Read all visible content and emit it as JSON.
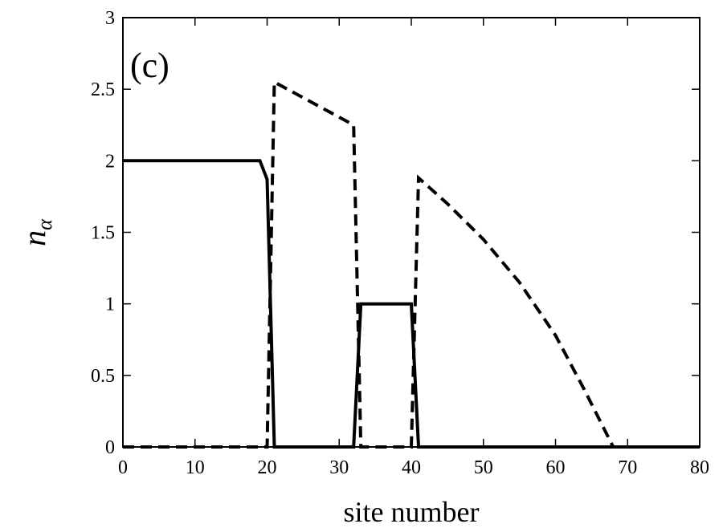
{
  "chart_data": {
    "type": "line",
    "title": "",
    "panel_label": "(c)",
    "xlabel": "site number",
    "ylabel": "n",
    "ylabel_sub": "α",
    "xlim": [
      0,
      80
    ],
    "ylim": [
      0,
      3
    ],
    "xticks": [
      "0",
      "10",
      "20",
      "30",
      "40",
      "50",
      "60",
      "70",
      "80"
    ],
    "yticks": [
      "0",
      "0.5",
      "1",
      "1.5",
      "2",
      "2.5",
      "3"
    ],
    "grid": false,
    "legend": "none",
    "series": [
      {
        "style": "solid",
        "x": [
          0,
          19,
          20,
          21,
          32,
          33,
          40,
          41,
          80
        ],
        "y": [
          2,
          2,
          1.87,
          0,
          0,
          1,
          1,
          0,
          0
        ]
      },
      {
        "style": "dashed",
        "x": [
          0,
          20,
          21,
          32,
          33,
          40,
          41,
          45,
          50,
          55,
          60,
          64,
          68,
          80
        ],
        "y": [
          0,
          0,
          2.55,
          2.25,
          0,
          0,
          1.88,
          1.7,
          1.45,
          1.15,
          0.78,
          0.4,
          0,
          0
        ]
      }
    ]
  }
}
